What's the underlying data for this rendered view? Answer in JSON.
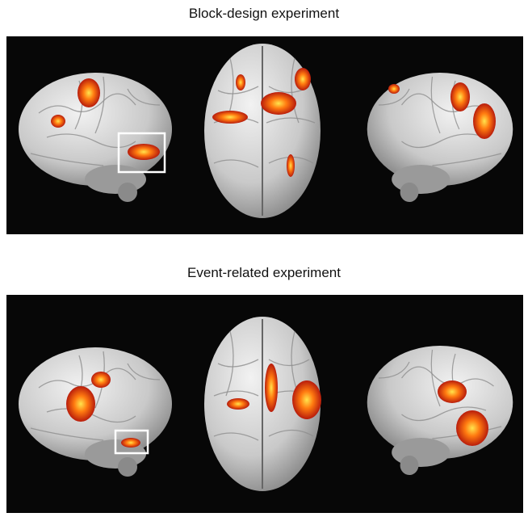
{
  "panels": [
    {
      "title": "Block-design experiment"
    },
    {
      "title": "Event-related experiment"
    }
  ]
}
